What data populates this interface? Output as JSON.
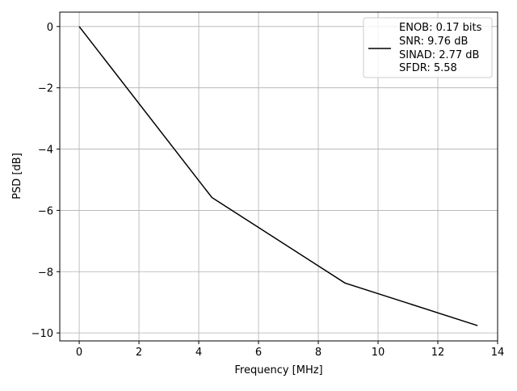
{
  "chart_data": {
    "type": "line",
    "title": "",
    "xlabel": "Frequency [MHz]",
    "ylabel": "PSD [dB]",
    "xlim": [
      -0.65,
      14
    ],
    "ylim": [
      -10.26,
      0.47
    ],
    "xticks": [
      0,
      2,
      4,
      6,
      8,
      10,
      12,
      14
    ],
    "yticks": [
      0,
      -2,
      -4,
      -6,
      -8,
      -10
    ],
    "grid": true,
    "legend_placement": "top-right",
    "series": [
      {
        "name": "ENOB: 0.17 bits\nSNR: 9.76 dB\nSINAD: 2.77 dB\nSFDR: 5.58",
        "color": "#000000",
        "x": [
          0,
          4.44,
          8.89,
          13.33
        ],
        "y": [
          0,
          -5.58,
          -8.37,
          -9.76
        ]
      }
    ],
    "legend_lines": [
      "ENOB: 0.17 bits",
      "SNR: 9.76 dB",
      "SINAD: 2.77 dB",
      "SFDR: 5.58"
    ]
  }
}
